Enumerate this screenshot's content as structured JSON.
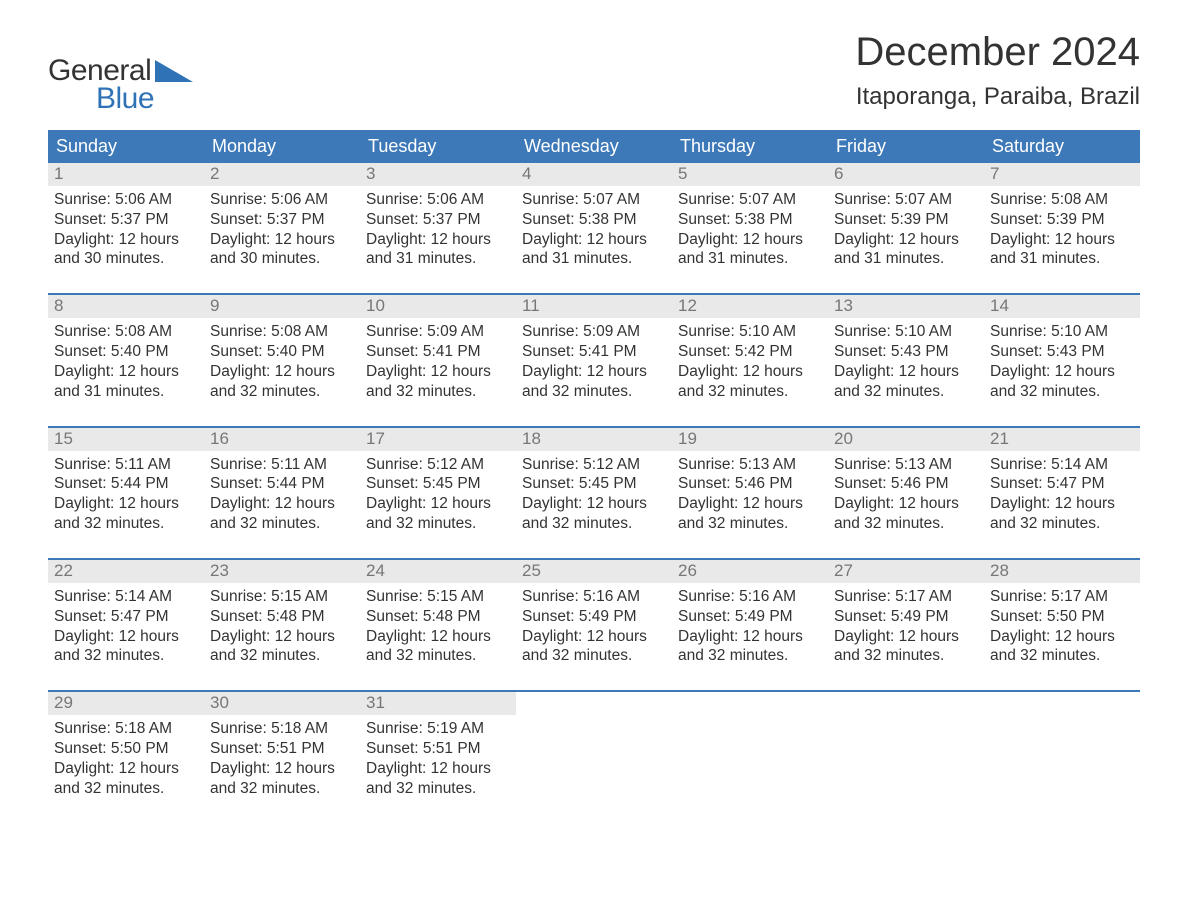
{
  "brand": {
    "word1": "General",
    "word2": "Blue",
    "accent_color": "#2f73b6"
  },
  "title": "December 2024",
  "location": "Itaporanga, Paraiba, Brazil",
  "colors": {
    "header_bg": "#3d79b8",
    "header_text": "#ffffff",
    "daynum_bg": "#e9e9e9",
    "daynum_text": "#777777",
    "body_text": "#333333",
    "week_divider": "#3d79b8",
    "page_bg": "#ffffff"
  },
  "typography": {
    "title_fontsize": 40,
    "location_fontsize": 24,
    "weekday_fontsize": 18,
    "daynum_fontsize": 17,
    "body_fontsize": 15.5
  },
  "weekdays": [
    "Sunday",
    "Monday",
    "Tuesday",
    "Wednesday",
    "Thursday",
    "Friday",
    "Saturday"
  ],
  "days": [
    {
      "n": 1,
      "sunrise": "5:06 AM",
      "sunset": "5:37 PM",
      "dl1": "12 hours",
      "dl2": "and 30 minutes."
    },
    {
      "n": 2,
      "sunrise": "5:06 AM",
      "sunset": "5:37 PM",
      "dl1": "12 hours",
      "dl2": "and 30 minutes."
    },
    {
      "n": 3,
      "sunrise": "5:06 AM",
      "sunset": "5:37 PM",
      "dl1": "12 hours",
      "dl2": "and 31 minutes."
    },
    {
      "n": 4,
      "sunrise": "5:07 AM",
      "sunset": "5:38 PM",
      "dl1": "12 hours",
      "dl2": "and 31 minutes."
    },
    {
      "n": 5,
      "sunrise": "5:07 AM",
      "sunset": "5:38 PM",
      "dl1": "12 hours",
      "dl2": "and 31 minutes."
    },
    {
      "n": 6,
      "sunrise": "5:07 AM",
      "sunset": "5:39 PM",
      "dl1": "12 hours",
      "dl2": "and 31 minutes."
    },
    {
      "n": 7,
      "sunrise": "5:08 AM",
      "sunset": "5:39 PM",
      "dl1": "12 hours",
      "dl2": "and 31 minutes."
    },
    {
      "n": 8,
      "sunrise": "5:08 AM",
      "sunset": "5:40 PM",
      "dl1": "12 hours",
      "dl2": "and 31 minutes."
    },
    {
      "n": 9,
      "sunrise": "5:08 AM",
      "sunset": "5:40 PM",
      "dl1": "12 hours",
      "dl2": "and 32 minutes."
    },
    {
      "n": 10,
      "sunrise": "5:09 AM",
      "sunset": "5:41 PM",
      "dl1": "12 hours",
      "dl2": "and 32 minutes."
    },
    {
      "n": 11,
      "sunrise": "5:09 AM",
      "sunset": "5:41 PM",
      "dl1": "12 hours",
      "dl2": "and 32 minutes."
    },
    {
      "n": 12,
      "sunrise": "5:10 AM",
      "sunset": "5:42 PM",
      "dl1": "12 hours",
      "dl2": "and 32 minutes."
    },
    {
      "n": 13,
      "sunrise": "5:10 AM",
      "sunset": "5:43 PM",
      "dl1": "12 hours",
      "dl2": "and 32 minutes."
    },
    {
      "n": 14,
      "sunrise": "5:10 AM",
      "sunset": "5:43 PM",
      "dl1": "12 hours",
      "dl2": "and 32 minutes."
    },
    {
      "n": 15,
      "sunrise": "5:11 AM",
      "sunset": "5:44 PM",
      "dl1": "12 hours",
      "dl2": "and 32 minutes."
    },
    {
      "n": 16,
      "sunrise": "5:11 AM",
      "sunset": "5:44 PM",
      "dl1": "12 hours",
      "dl2": "and 32 minutes."
    },
    {
      "n": 17,
      "sunrise": "5:12 AM",
      "sunset": "5:45 PM",
      "dl1": "12 hours",
      "dl2": "and 32 minutes."
    },
    {
      "n": 18,
      "sunrise": "5:12 AM",
      "sunset": "5:45 PM",
      "dl1": "12 hours",
      "dl2": "and 32 minutes."
    },
    {
      "n": 19,
      "sunrise": "5:13 AM",
      "sunset": "5:46 PM",
      "dl1": "12 hours",
      "dl2": "and 32 minutes."
    },
    {
      "n": 20,
      "sunrise": "5:13 AM",
      "sunset": "5:46 PM",
      "dl1": "12 hours",
      "dl2": "and 32 minutes."
    },
    {
      "n": 21,
      "sunrise": "5:14 AM",
      "sunset": "5:47 PM",
      "dl1": "12 hours",
      "dl2": "and 32 minutes."
    },
    {
      "n": 22,
      "sunrise": "5:14 AM",
      "sunset": "5:47 PM",
      "dl1": "12 hours",
      "dl2": "and 32 minutes."
    },
    {
      "n": 23,
      "sunrise": "5:15 AM",
      "sunset": "5:48 PM",
      "dl1": "12 hours",
      "dl2": "and 32 minutes."
    },
    {
      "n": 24,
      "sunrise": "5:15 AM",
      "sunset": "5:48 PM",
      "dl1": "12 hours",
      "dl2": "and 32 minutes."
    },
    {
      "n": 25,
      "sunrise": "5:16 AM",
      "sunset": "5:49 PM",
      "dl1": "12 hours",
      "dl2": "and 32 minutes."
    },
    {
      "n": 26,
      "sunrise": "5:16 AM",
      "sunset": "5:49 PM",
      "dl1": "12 hours",
      "dl2": "and 32 minutes."
    },
    {
      "n": 27,
      "sunrise": "5:17 AM",
      "sunset": "5:49 PM",
      "dl1": "12 hours",
      "dl2": "and 32 minutes."
    },
    {
      "n": 28,
      "sunrise": "5:17 AM",
      "sunset": "5:50 PM",
      "dl1": "12 hours",
      "dl2": "and 32 minutes."
    },
    {
      "n": 29,
      "sunrise": "5:18 AM",
      "sunset": "5:50 PM",
      "dl1": "12 hours",
      "dl2": "and 32 minutes."
    },
    {
      "n": 30,
      "sunrise": "5:18 AM",
      "sunset": "5:51 PM",
      "dl1": "12 hours",
      "dl2": "and 32 minutes."
    },
    {
      "n": 31,
      "sunrise": "5:19 AM",
      "sunset": "5:51 PM",
      "dl1": "12 hours",
      "dl2": "and 32 minutes."
    }
  ],
  "labels": {
    "sunrise_prefix": "Sunrise: ",
    "sunset_prefix": "Sunset: ",
    "daylight_prefix": "Daylight: "
  },
  "layout": {
    "columns": 7,
    "rows": 5,
    "start_weekday_index": 0,
    "trailing_empty": 4
  }
}
